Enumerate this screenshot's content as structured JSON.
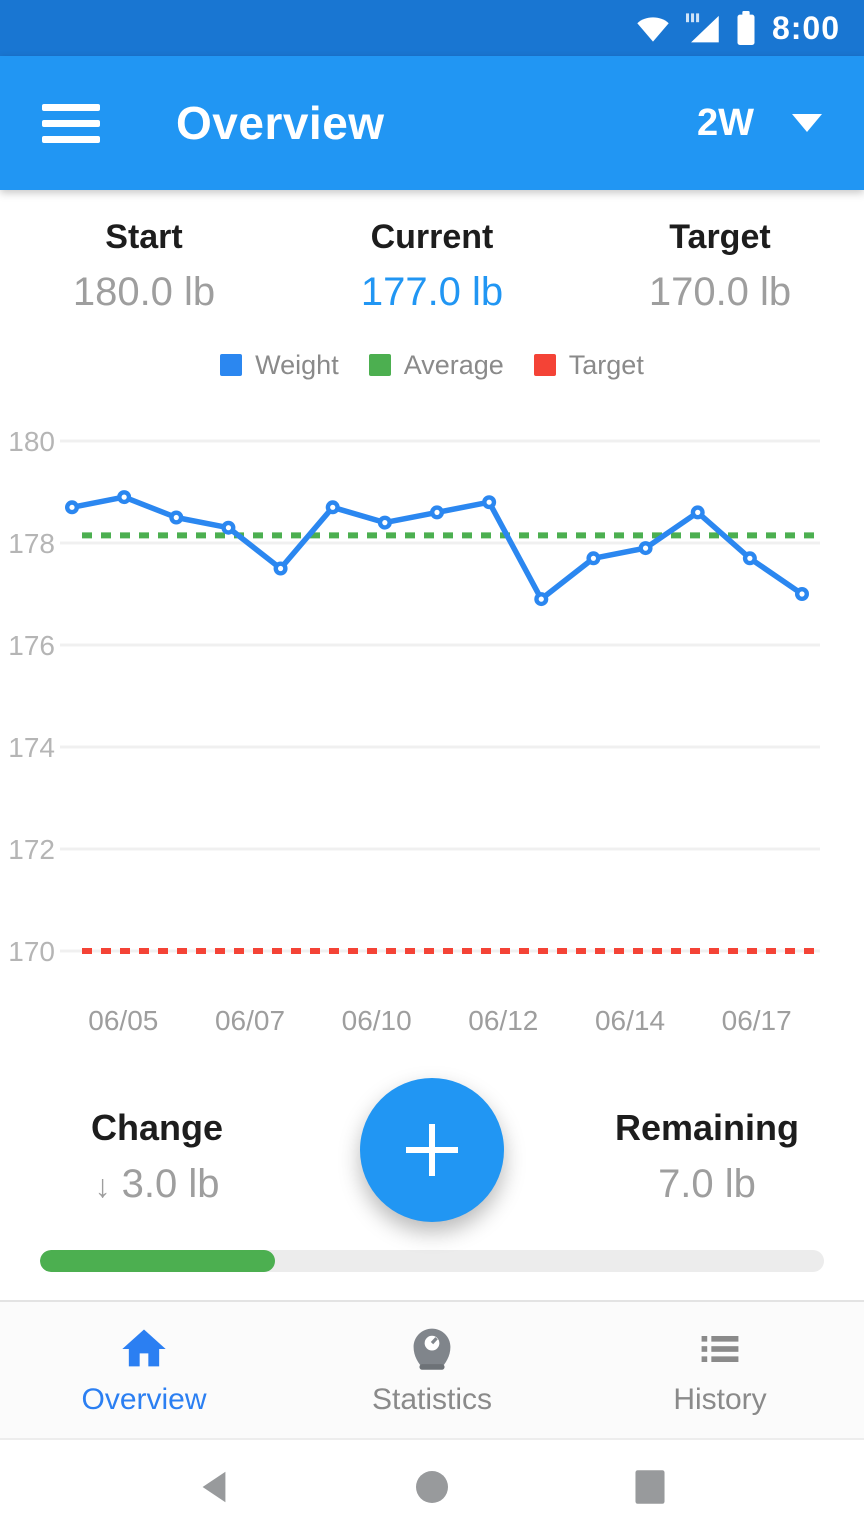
{
  "status_bar": {
    "time": "8:00",
    "icons": [
      "wifi-icon",
      "cellular-signal-icon",
      "battery-icon"
    ]
  },
  "app_bar": {
    "menu_icon": "hamburger-menu-icon",
    "title": "Overview",
    "range_selector": {
      "value": "2W",
      "icon": "dropdown-caret-icon"
    }
  },
  "summary": {
    "start": {
      "label": "Start",
      "value": "180.0 lb"
    },
    "current": {
      "label": "Current",
      "value": "177.0 lb"
    },
    "target": {
      "label": "Target",
      "value": "170.0 lb"
    }
  },
  "chart_data": {
    "type": "line",
    "title": "",
    "legend_position": "top",
    "grid": true,
    "x": [
      "06/04",
      "06/05",
      "06/06",
      "06/07",
      "06/08",
      "06/09",
      "06/10",
      "06/11",
      "06/12",
      "06/13",
      "06/14",
      "06/15",
      "06/16",
      "06/17",
      "06/18"
    ],
    "series": [
      {
        "name": "Weight",
        "color": "#2b87f0",
        "style": "solid-markers",
        "values": [
          178.7,
          178.9,
          178.5,
          178.3,
          177.5,
          178.7,
          178.4,
          178.6,
          178.8,
          176.9,
          177.7,
          177.9,
          178.6,
          177.7,
          177.0
        ]
      },
      {
        "name": "Average",
        "color": "#4caf50",
        "style": "dotted",
        "value": 178.15
      },
      {
        "name": "Target",
        "color": "#f44336",
        "style": "dotted",
        "value": 170.0
      }
    ],
    "y_ticks": [
      180,
      178,
      176,
      174,
      172,
      170
    ],
    "x_tick_labels": [
      "06/05",
      "06/07",
      "06/10",
      "06/12",
      "06/14",
      "06/17"
    ],
    "ylim": [
      169.5,
      180.6
    ],
    "ylabel": "",
    "xlabel": ""
  },
  "footer": {
    "change": {
      "label": "Change",
      "direction": "↓",
      "value": "3.0 lb"
    },
    "remaining": {
      "label": "Remaining",
      "value": "7.0 lb"
    },
    "fab_icon": "plus-icon"
  },
  "progress": {
    "percent": 30
  },
  "bottom_nav": {
    "items": [
      {
        "label": "Overview",
        "icon": "home-icon",
        "active": true
      },
      {
        "label": "Statistics",
        "icon": "scale-icon",
        "active": false
      },
      {
        "label": "History",
        "icon": "list-icon",
        "active": false
      }
    ]
  },
  "android_nav": {
    "buttons": [
      "back",
      "home",
      "recents"
    ]
  },
  "colors": {
    "status_bar_blue": "#1976d2",
    "app_bar_blue": "#2196f3",
    "accent_blue": "#2196f3",
    "weight_line_blue": "#2b87f0",
    "average_green": "#4caf50",
    "target_red": "#f44336",
    "progress_green": "#4caf50",
    "value_grey": "#9e9e9e"
  }
}
